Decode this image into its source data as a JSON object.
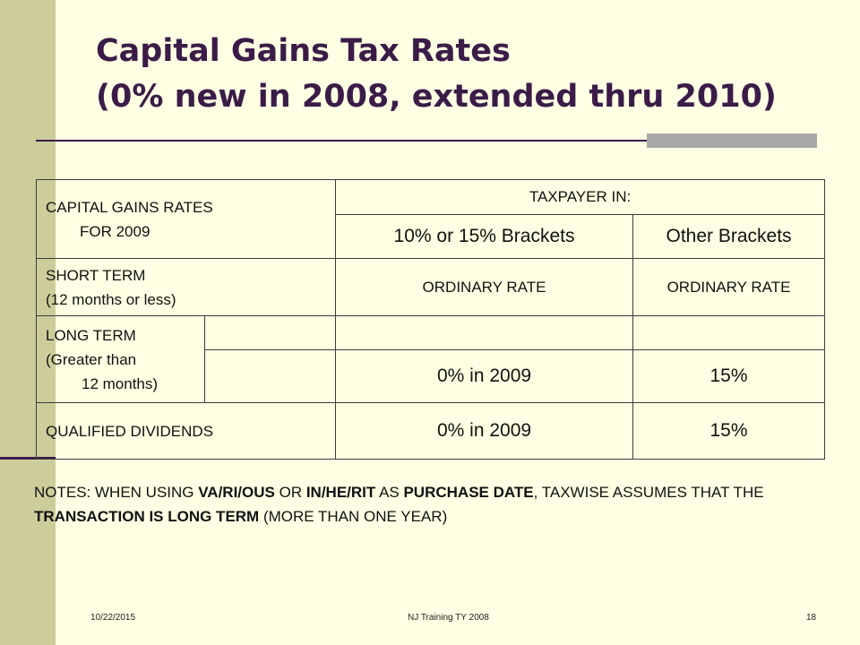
{
  "slide": {
    "title_line1": "Capital Gains Tax Rates",
    "title_line2": "(0% new in 2008, extended thru 2010)",
    "colors": {
      "background": "#ffffe3",
      "sidebar": "#cdcd9b",
      "title": "#3b1c48",
      "accent_bar": "#a8a8a8"
    }
  },
  "table": {
    "header": {
      "label_line1": "CAPITAL GAINS RATES",
      "label_line2": "FOR 2009",
      "group_label": "TAXPAYER IN:",
      "col1": "10% or 15% Brackets",
      "col2": "Other Brackets"
    },
    "short_term": {
      "label_line1": "SHORT TERM",
      "label_line2": "(12 months or less)",
      "col1": "ORDINARY RATE",
      "col2": "ORDINARY RATE"
    },
    "long_term": {
      "label_line1": "LONG TERM",
      "label_line2": "(Greater than",
      "label_line3": "12 months)",
      "col1": "0% in 2009",
      "col2": "15%"
    },
    "qualified_dividends": {
      "label": "QUALIFIED DIVIDENDS",
      "col1": "0% in 2009",
      "col2": "15%"
    }
  },
  "notes": {
    "p1": "NOTES: WHEN USING ",
    "b1": "VA/RI/OUS",
    "p2": " OR ",
    "b2": "IN/HE/RIT",
    "p3": " AS ",
    "b3": "PURCHASE DATE",
    "p4": ", TAXWISE ASSUMES THAT THE ",
    "b4": "TRANSACTION IS LONG TERM",
    "p5": " (MORE THAN ONE YEAR)"
  },
  "footer": {
    "date": "10/22/2015",
    "center": "NJ Training TY 2008",
    "page": "18"
  }
}
